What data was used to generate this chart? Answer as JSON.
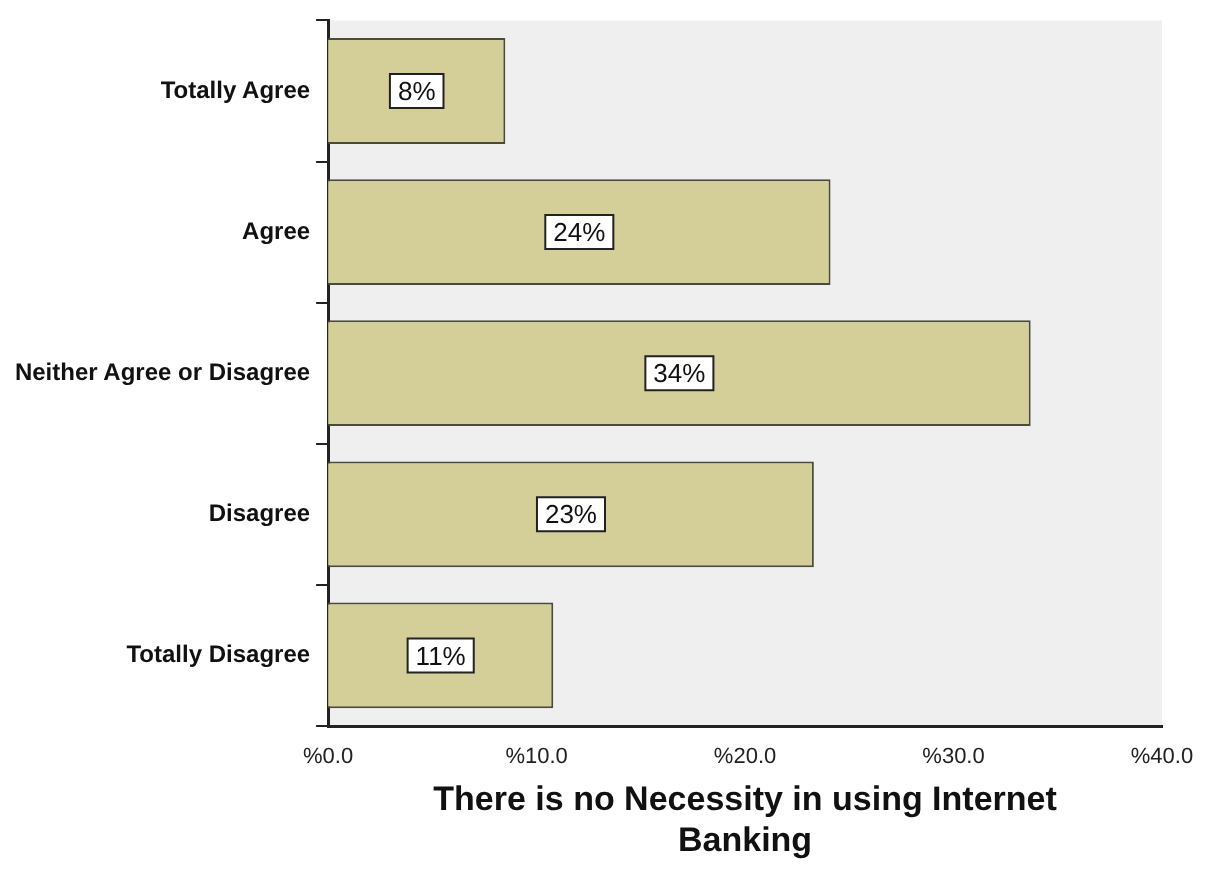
{
  "chart_data": {
    "type": "bar",
    "orientation": "horizontal",
    "xlabel": "There is no Necessity in using Internet Banking",
    "categories": [
      "Totally Agree",
      "Agree",
      "Neither Agree or Disagree",
      "Disagree",
      "Totally Disagree"
    ],
    "values": [
      8.5,
      24.1,
      33.7,
      23.3,
      10.8
    ],
    "value_labels": [
      "8%",
      "24%",
      "34%",
      "23%",
      "11%"
    ],
    "color": "#d4cf98",
    "xlim": [
      0,
      40
    ],
    "xticks": [
      {
        "value": 0,
        "label": "%0.0"
      },
      {
        "value": 10,
        "label": "%10.0"
      },
      {
        "value": 20,
        "label": "%20.0"
      },
      {
        "value": 30,
        "label": "%30.0"
      },
      {
        "value": 40,
        "label": "%40.0"
      }
    ],
    "grid": false,
    "legend": false
  }
}
